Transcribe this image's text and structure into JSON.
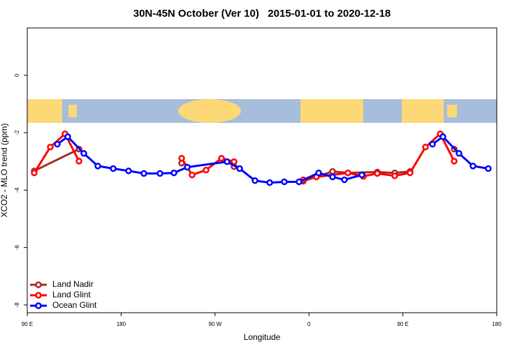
{
  "chart_data": {
    "type": "line",
    "title": "30N-45N October (Ver 10)   2015-01-01 to 2020-12-18",
    "x_label": "Longitude",
    "y_label": "XCO2 - MLO trend (ppm)",
    "xlim": [
      90,
      540
    ],
    "ylim": [
      -8.27,
      1.65
    ],
    "xticks": [
      {
        "value": 90,
        "label": "90 E"
      },
      180,
      {
        "value": 270,
        "label": "90 W"
      },
      {
        "value": 360,
        "label": "0"
      },
      {
        "value": 450,
        "label": "90 E"
      },
      {
        "value": 540,
        "label": "180"
      }
    ],
    "yticks": [
      0,
      -2,
      -4,
      -6,
      -8
    ],
    "legend": "bottom-left",
    "series": [
      {
        "name": "Land Nadir",
        "color": "#a52a2a",
        "x": [
          96.7,
          139.6,
          null,
          238.0,
          null,
          288.2,
          null,
          354.5,
          382.6,
          397.4,
          425.5,
          442.2,
          456.9,
          null,
          499.2
        ],
        "values": [
          -3.33,
          -2.57,
          null,
          -3.06,
          null,
          -3.18,
          null,
          -3.69,
          -3.35,
          -3.4,
          -3.37,
          -3.4,
          -3.35,
          null,
          -2.57
        ]
      },
      {
        "name": "Land Glint",
        "color": "#ff0000",
        "x": [
          96.7,
          112.1,
          126.2,
          139.6,
          null,
          238.0,
          248.0,
          261.4,
          276.2,
          288.2,
          null,
          354.5,
          367.2,
          397.4,
          412.1,
          425.5,
          442.2,
          456.9,
          471.7,
          485.8,
          499.2
        ],
        "values": [
          -3.4,
          -2.5,
          -2.04,
          -2.99,
          null,
          -2.89,
          -3.47,
          -3.3,
          -2.89,
          -3.01,
          null,
          -3.64,
          -3.54,
          -3.4,
          -3.52,
          -3.42,
          -3.5,
          -3.4,
          -2.5,
          -2.04,
          -2.99
        ]
      },
      {
        "name": "Ocean Glint",
        "color": "#0000ff",
        "x": [
          118.8,
          128.8,
          144.2,
          157.6,
          172.4,
          187.1,
          201.8,
          217.2,
          230.6,
          243.4,
          281.5,
          293.6,
          308.3,
          322.4,
          336.4,
          350.5,
          369.3,
          382.6,
          394.0,
          410.7,
          null,
          478.4,
          488.4,
          503.8,
          517.2,
          531.9
        ],
        "values": [
          -2.4,
          -2.14,
          -2.72,
          -3.16,
          -3.25,
          -3.33,
          -3.42,
          -3.42,
          -3.4,
          -3.2,
          -3.01,
          -3.25,
          -3.67,
          -3.74,
          -3.71,
          -3.71,
          -3.4,
          -3.54,
          -3.64,
          -3.47,
          null,
          -2.4,
          -2.14,
          -2.72,
          -3.16,
          -3.25
        ]
      }
    ]
  }
}
